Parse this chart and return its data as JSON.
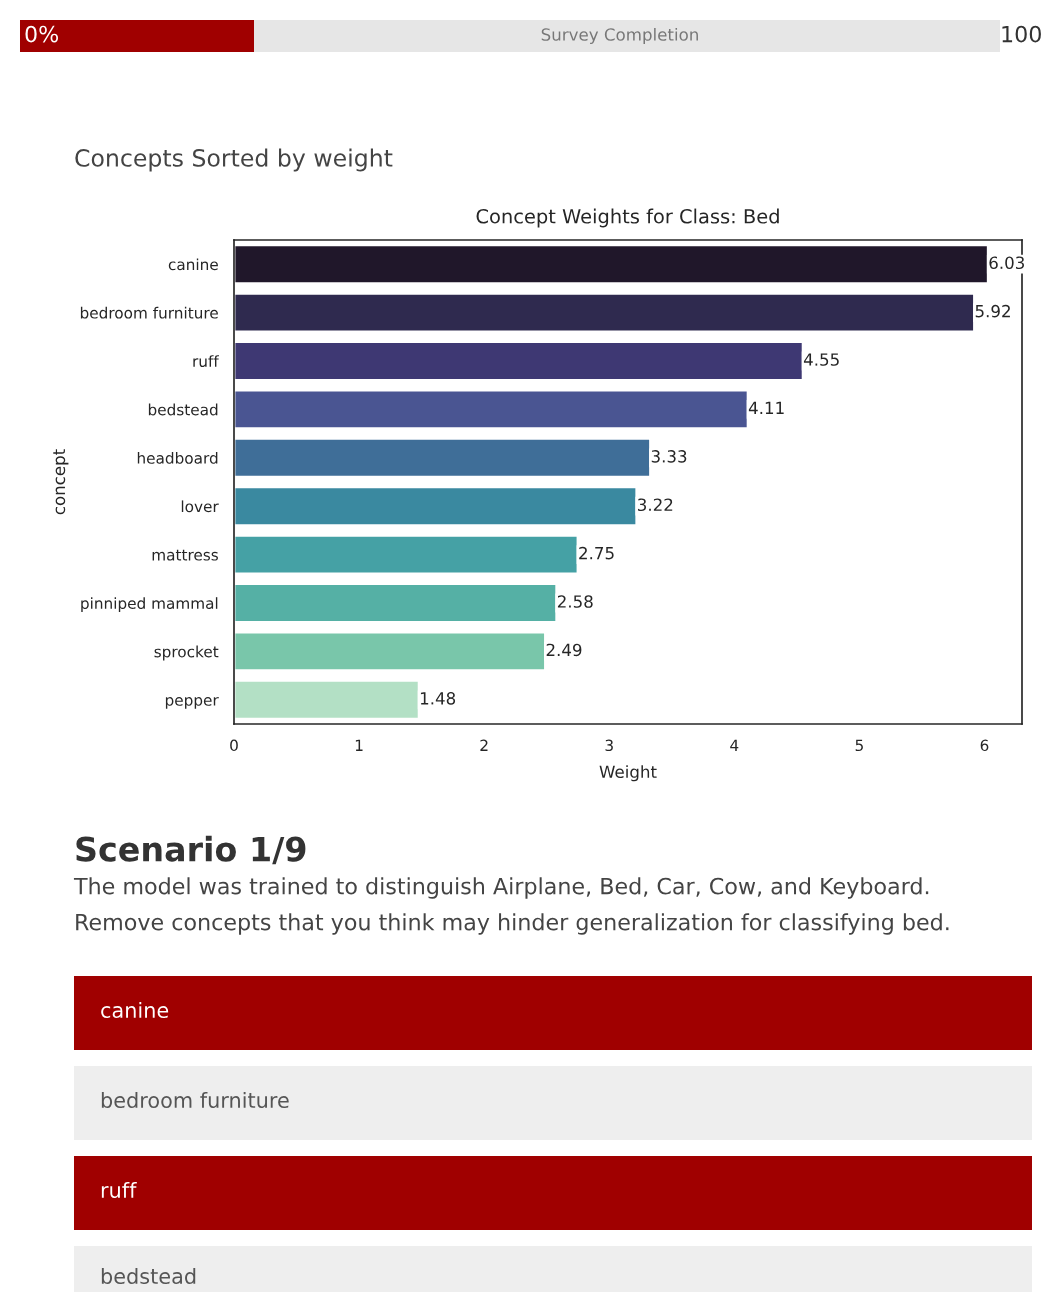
{
  "chart_data": {
    "type": "bar",
    "orientation": "horizontal",
    "title": "Concept Weights for Class: Bed",
    "xlabel": "Weight",
    "ylabel": "concept",
    "categories": [
      "canine",
      "bedroom furniture",
      "ruff",
      "bedstead",
      "headboard",
      "lover",
      "mattress",
      "pinniped mammal",
      "sprocket",
      "pepper"
    ],
    "values": [
      6.03,
      5.92,
      4.55,
      4.11,
      3.33,
      3.22,
      2.75,
      2.58,
      2.49,
      1.48
    ],
    "colors": [
      "#20172a",
      "#2f2a4f",
      "#3e3873",
      "#4a5592",
      "#3f6e98",
      "#3a89a0",
      "#45a1a5",
      "#55b0a5",
      "#79c6aa",
      "#b3e0c5"
    ],
    "xlim": [
      0,
      6.3
    ],
    "xticks": [
      0,
      1,
      2,
      3,
      4,
      5,
      6
    ],
    "data_labels": true,
    "grid": false,
    "legend": false,
    "annotations": [
      "0%",
      "Survey Completion",
      "100",
      "Concepts Sorted by weight",
      "Scenario 1/9",
      "The model was trained to distinguish Airplane, Bed, Car, Cow, and Keyboard.",
      "Remove concepts that you think may hinder generalization for classifying bed.",
      "canine",
      "bedroom furniture",
      "ruff",
      "bedstead"
    ]
  }
}
